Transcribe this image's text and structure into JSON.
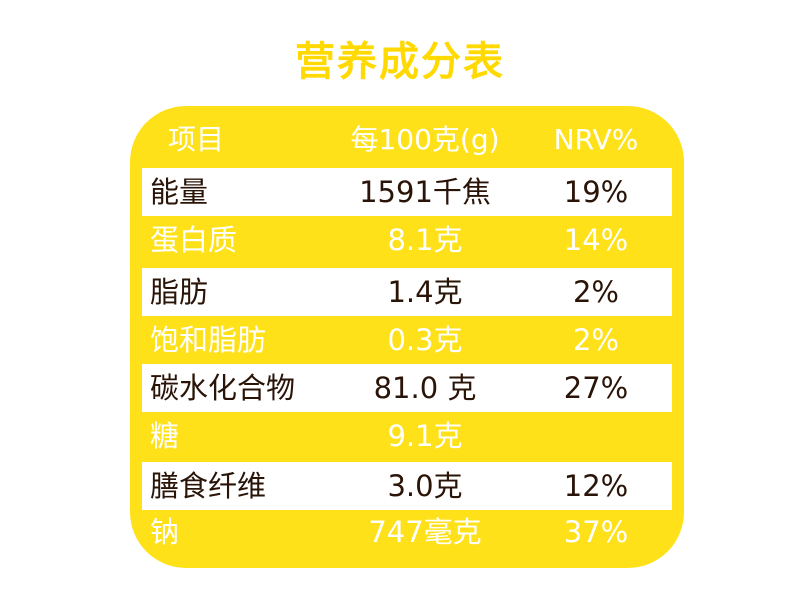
{
  "title": "营养成分表",
  "header": {
    "item": "项目",
    "per100": "每100克(g)",
    "nrv": "NRV%"
  },
  "rows": [
    {
      "name": "能量",
      "amount": "1591千焦",
      "nrv": "19%"
    },
    {
      "name": "蛋白质",
      "amount": "8.1克",
      "nrv": "14%"
    },
    {
      "name": "脂肪",
      "amount": "1.4克",
      "nrv": "2%"
    },
    {
      "name": "饱和脂肪",
      "amount": "0.3克",
      "nrv": "2%"
    },
    {
      "name": "碳水化合物",
      "amount": "81.0 克",
      "nrv": "27%"
    },
    {
      "name": "糖",
      "amount": "9.1克",
      "nrv": ""
    },
    {
      "name": "膳食纤维",
      "amount": "3.0克",
      "nrv": "12%"
    },
    {
      "name": "钠",
      "amount": "747毫克",
      "nrv": "37%"
    }
  ],
  "colors": {
    "accent": "#ffe11a",
    "title": "#ffd900",
    "text_dark": "#2a1408",
    "text_light": "#ffffff"
  }
}
